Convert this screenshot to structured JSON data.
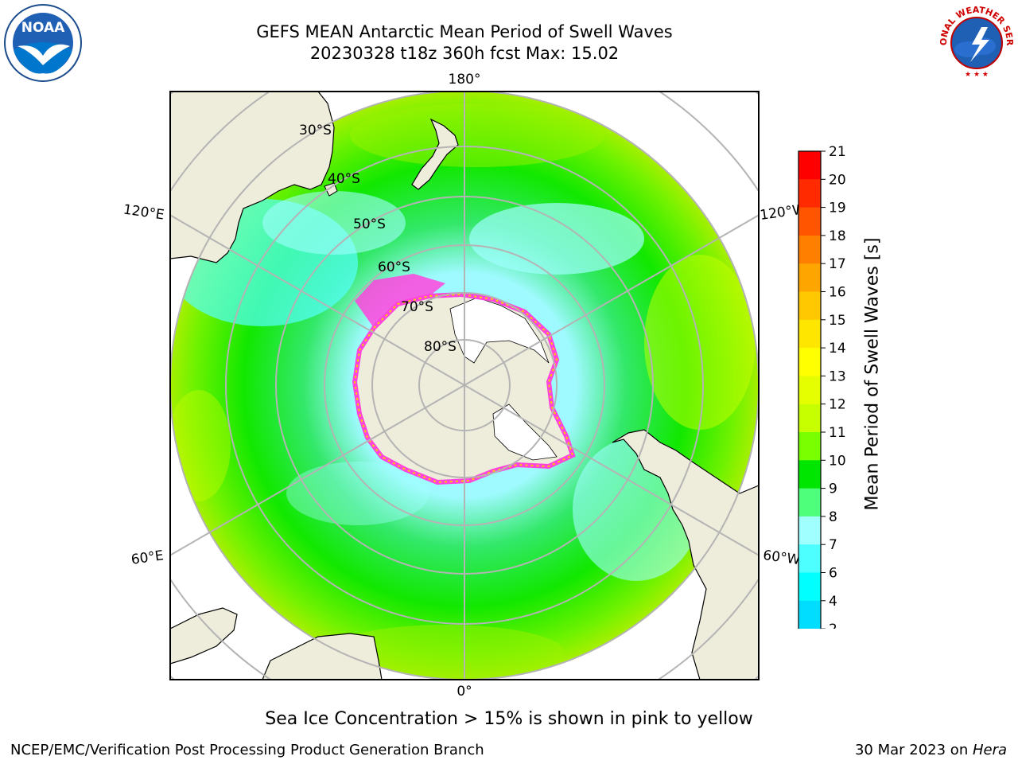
{
  "header": {
    "title_line1": "GEFS MEAN Antarctic Mean Period of Swell Waves",
    "title_line2": "20230328 t18z 360h fcst   Max: 15.02"
  },
  "logos": {
    "left": "NOAA",
    "left_ring_text": "NATIONAL OCEANIC AND ATMOSPHERIC ADMINISTRATION · U.S. DEPARTMENT OF COMMERCE",
    "right_ring_text": "NATIONAL WEATHER SERVICE"
  },
  "map": {
    "projection": "south-polar-stereographic",
    "longitude_labels": {
      "top": "180°",
      "bottom": "0°",
      "upper_left": "120°E",
      "upper_right": "120°W",
      "lower_left": "60°E",
      "lower_right": "60°W"
    },
    "latitude_labels": [
      "30°S",
      "40°S",
      "50°S",
      "60°S",
      "70°S",
      "80°S"
    ],
    "colors": {
      "land": "#eeecdb",
      "ice_edge": "#ff44dd",
      "ice_inner": "#ffc800",
      "grid": "#b4b4b4"
    }
  },
  "colorbar": {
    "label": "Mean Period of Swell Waves [s]",
    "ticks": [
      "21",
      "20",
      "19",
      "18",
      "17",
      "16",
      "15",
      "14",
      "13",
      "12",
      "11",
      "10",
      "9",
      "8",
      "7",
      "6",
      "4",
      "2"
    ],
    "bin_colors": [
      "#ff0000",
      "#ff2a00",
      "#ff5500",
      "#ff7f00",
      "#ffa500",
      "#ffc800",
      "#ffe600",
      "#ffff00",
      "#e6ff00",
      "#c8ff00",
      "#7aff00",
      "#00e600",
      "#4dff7a",
      "#a0ffff",
      "#4dffff",
      "#00ffff",
      "#00ddff",
      "#0077ff"
    ],
    "under_color": "#0000ff"
  },
  "caption": "Sea Ice Concentration > 15% is shown in pink to yellow",
  "footer": {
    "left": "NCEP/EMC/Verification Post Processing Product Generation Branch",
    "right_prefix": "30 Mar 2023 on ",
    "right_machine": "Hera"
  }
}
